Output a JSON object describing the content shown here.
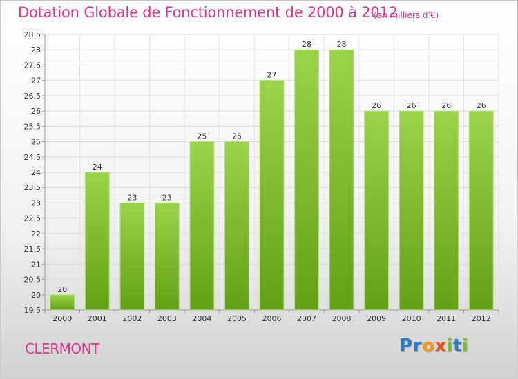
{
  "chart_data": {
    "type": "bar",
    "title": "Dotation Globale de Fonctionnement de 2000 à 2012",
    "subtitle": "(en milliers d'€)",
    "categories": [
      "2000",
      "2001",
      "2002",
      "2003",
      "2004",
      "2005",
      "2006",
      "2007",
      "2008",
      "2009",
      "2010",
      "2011",
      "2012"
    ],
    "values": [
      20,
      24,
      23,
      23,
      25,
      25,
      27,
      28,
      28,
      26,
      26,
      26,
      26
    ],
    "data_labels": [
      "20",
      "24",
      "23",
      "23",
      "25",
      "25",
      "27",
      "28",
      "28",
      "26",
      "26",
      "26",
      "26"
    ],
    "ylim": [
      19.5,
      28.5
    ],
    "yticks": [
      "19.5",
      "20",
      "20.5",
      "21",
      "21.5",
      "22",
      "22.5",
      "23",
      "23.5",
      "24",
      "24.5",
      "25",
      "25.5",
      "26",
      "26.5",
      "27",
      "27.5",
      "28",
      "28.5"
    ],
    "xlabel": "",
    "ylabel": "",
    "grid": true,
    "bar_color": "#8cc63f",
    "title_color": "#d63a8a"
  },
  "place_name": "CLERMONT",
  "logo": {
    "letters": [
      "P",
      "r",
      "o",
      "x",
      "i",
      "t",
      "i"
    ],
    "colors": [
      "#2e7bc4",
      "#2e7bc4",
      "#f39c12",
      "#e8501e",
      "#7dbb2a",
      "#2e7bc4",
      "#7dbb2a"
    ]
  }
}
